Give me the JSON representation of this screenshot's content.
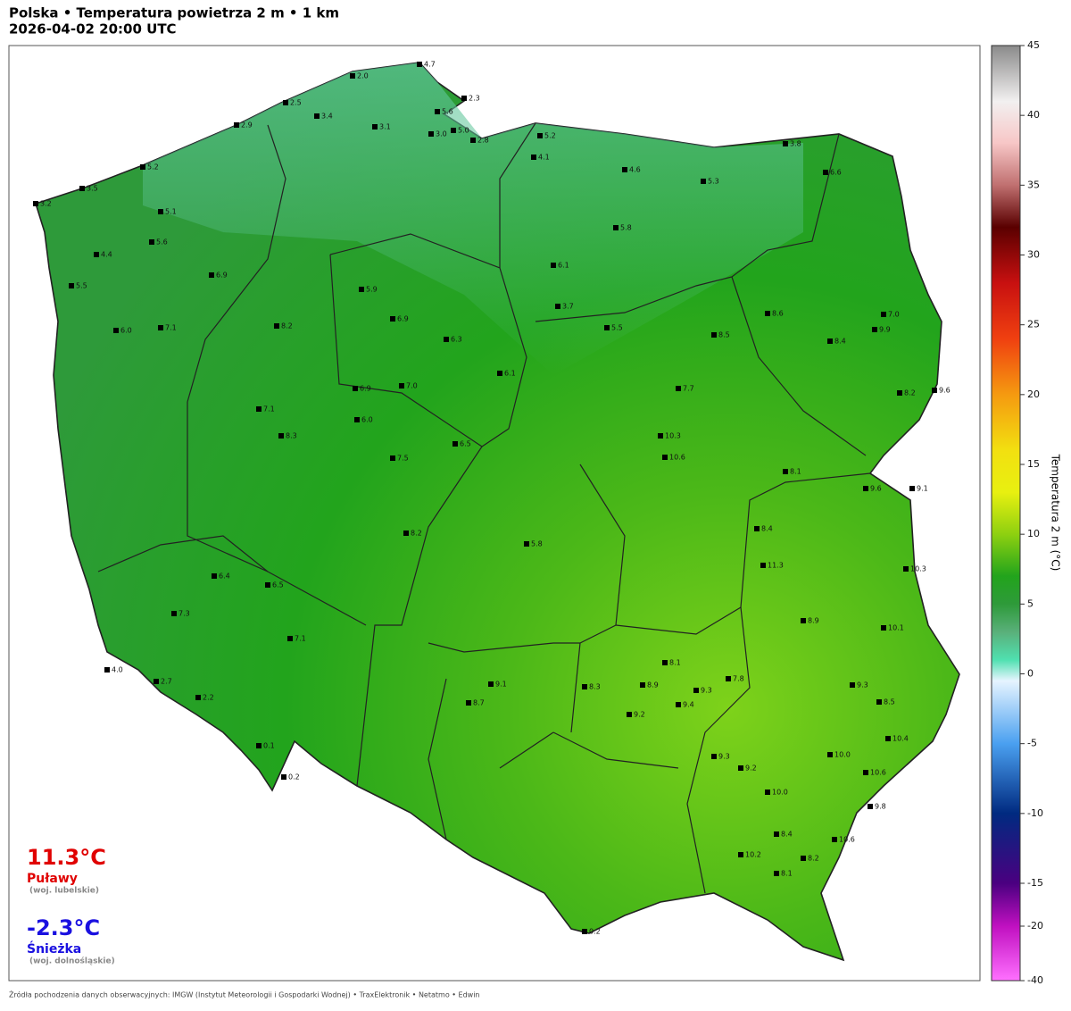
{
  "header": {
    "title": "Polska • Temperatura powietrza 2 m • 1 km",
    "subtitle": "2026-04-02  20:00  UTC"
  },
  "colorbar": {
    "label": "Temperatura 2 m (°C)",
    "ticks": [
      45,
      40,
      35,
      30,
      25,
      20,
      15,
      10,
      5,
      0,
      -5,
      -10,
      -15,
      -20,
      -40
    ]
  },
  "extremes": {
    "max": {
      "value": "11.3°C",
      "place": "Puławy",
      "region": "(woj. lubelskie)"
    },
    "min": {
      "value": "-2.3°C",
      "place": "Śnieżka",
      "region": "(woj. dolnośląskie)"
    }
  },
  "stations": [
    "4.7",
    "2.3",
    "2.0",
    "5.6",
    "5.0",
    "2.8",
    "3.1",
    "3.0",
    "3.4",
    "2.5",
    "2.9",
    "5.2",
    "3.5",
    "3.2",
    "5.2",
    "4.1",
    "4.6",
    "3.8",
    "5.3",
    "6.6",
    "5.1",
    "5.6",
    "4.4",
    "5.5",
    "6.9",
    "6.0",
    "7.1",
    "8.2",
    "5.9",
    "6.9",
    "6.3",
    "6.1",
    "3.7",
    "5.5",
    "5.8",
    "8.5",
    "8.6",
    "8.4",
    "7.0",
    "9.9",
    "8.2",
    "9.6",
    "7.7",
    "10.3",
    "10.6",
    "8.1",
    "9.6",
    "9.1",
    "11.3",
    "8.4",
    "10.3",
    "8.9",
    "10.1",
    "9.3",
    "8.5",
    "10.4",
    "10.0",
    "10.0",
    "10.6",
    "9.8",
    "10.6",
    "8.4",
    "10.2",
    "8.2",
    "8.1",
    "4.0",
    "2.7",
    "2.2",
    "0.1",
    "0.2",
    "0.2",
    "7.3",
    "5.8",
    "8.7",
    "9.1",
    "8.3",
    "8.9",
    "9.3",
    "8.1",
    "7.8",
    "9.4",
    "9.2",
    "9.3",
    "9.2",
    "8.2",
    "7.1",
    "6.5",
    "6.4",
    "7.5",
    "8.3",
    "7.1",
    "6.0",
    "7.0",
    "6.9",
    "6.1",
    "6.5"
  ],
  "footer": "Źródła pochodzenia danych obserwacyjnych: IMGW (Instytut Meteorologii i Gospodarki Wodnej)  •  TraxElektronik  •  Netatmo  •  Edwin"
}
